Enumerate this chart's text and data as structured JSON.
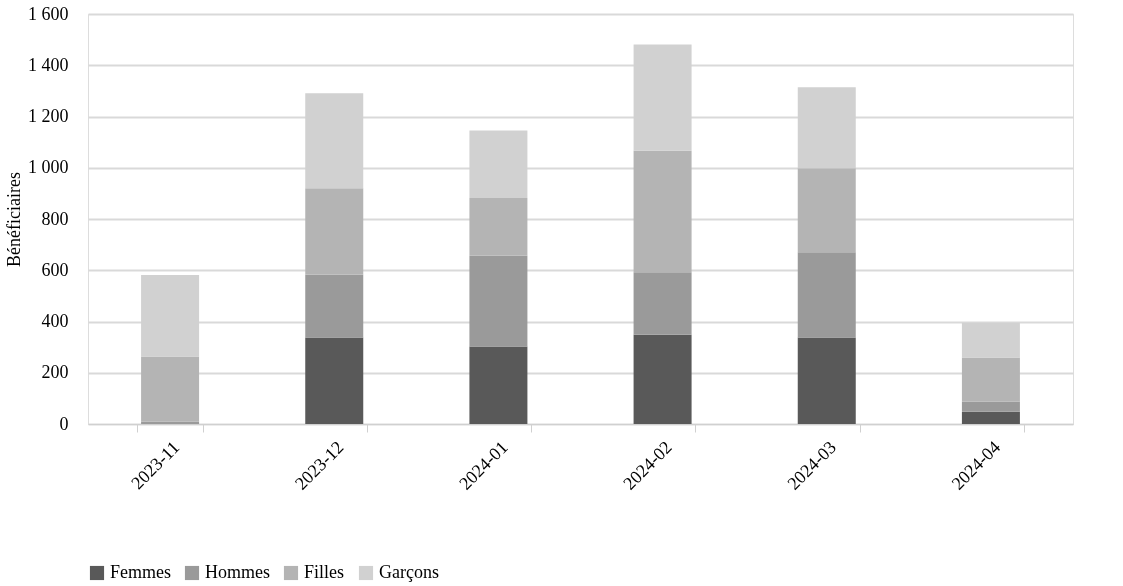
{
  "chart_data": {
    "type": "bar",
    "stacked": true,
    "ylabel": "Bénéficiaires",
    "categories": [
      "2023-11",
      "2023-12",
      "2024-01",
      "2024-02",
      "2024-03",
      "2024-04"
    ],
    "series": [
      {
        "name": "Femmes",
        "color": "#595959",
        "values": [
          0,
          338,
          302,
          348,
          338,
          48
        ]
      },
      {
        "name": "Hommes",
        "color": "#9a9a9a",
        "values": [
          10,
          244,
          355,
          244,
          332,
          40
        ]
      },
      {
        "name": "Filles",
        "color": "#b4b4b4",
        "values": [
          253,
          338,
          225,
          474,
          328,
          172
        ]
      },
      {
        "name": "Garçons",
        "color": "#d1d1d1",
        "values": [
          318,
          371,
          263,
          415,
          316,
          135
        ]
      }
    ],
    "ylim": [
      0,
      1600
    ],
    "yticks": [
      0,
      {
        "value": 200,
        "label": "200"
      },
      {
        "value": 400,
        "label": "400"
      },
      {
        "value": 600,
        "label": "600"
      },
      {
        "value": 800,
        "label": "800"
      },
      {
        "value": 1000,
        "label": "1 000"
      },
      {
        "value": 1200,
        "label": "1 200"
      },
      {
        "value": 1400,
        "label": "1 400"
      },
      {
        "value": 1600,
        "label": "1 600"
      }
    ],
    "grid": "y",
    "legend": "bottom"
  }
}
